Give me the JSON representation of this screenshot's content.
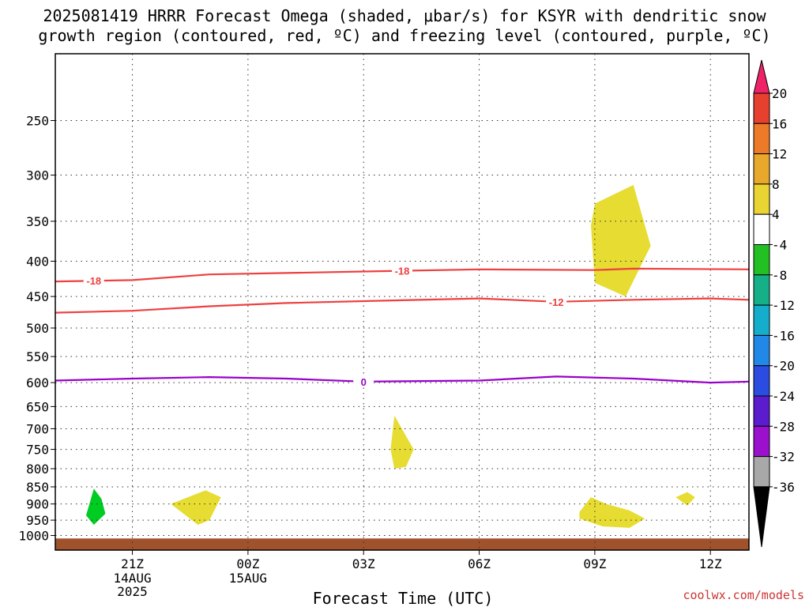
{
  "title_line1": "2025081419 HRRR Forecast Omega (shaded, μbar/s) for KSYR with dendritic snow",
  "title_line2": "growth region (contoured, red, ºC) and freezing level (contoured, purple, ºC)",
  "credit": "coolwx.com/models",
  "chart_data": {
    "type": "time-height cross section",
    "xlabel": "Forecast Time (UTC)",
    "ylabel": "",
    "y_scale": "log pressure (inverted)",
    "ylim_hPa": [
      1050,
      200
    ],
    "xlim_hours_after_19Z": [
      0,
      18
    ],
    "x_ticks": [
      {
        "hour": 2,
        "label": "21Z",
        "sub": [
          "14AUG",
          "2025"
        ]
      },
      {
        "hour": 5,
        "label": "00Z",
        "sub": [
          "15AUG"
        ]
      },
      {
        "hour": 8,
        "label": "03Z",
        "sub": []
      },
      {
        "hour": 11,
        "label": "06Z",
        "sub": []
      },
      {
        "hour": 14,
        "label": "09Z",
        "sub": []
      },
      {
        "hour": 17,
        "label": "12Z",
        "sub": []
      }
    ],
    "y_ticks": [
      250,
      300,
      350,
      400,
      450,
      500,
      550,
      600,
      650,
      700,
      750,
      800,
      850,
      900,
      950,
      1000
    ],
    "grid": true,
    "contours": [
      {
        "label": "-18",
        "color": "#ee4040",
        "type": "dendritic snow growth",
        "points": [
          [
            0,
            428
          ],
          [
            2,
            426
          ],
          [
            4,
            418
          ],
          [
            6,
            416
          ],
          [
            8,
            414
          ],
          [
            11,
            411
          ],
          [
            14,
            412
          ],
          [
            15,
            410
          ],
          [
            18,
            411
          ]
        ],
        "label_at": [
          [
            1,
            428
          ],
          [
            9,
            414
          ]
        ]
      },
      {
        "label": "-12",
        "color": "#ee4040",
        "type": "dendritic snow growth",
        "points": [
          [
            0,
            475
          ],
          [
            2,
            472
          ],
          [
            4,
            465
          ],
          [
            6,
            460
          ],
          [
            8,
            457
          ],
          [
            11,
            453
          ],
          [
            13,
            458
          ],
          [
            15,
            455
          ],
          [
            17,
            453
          ],
          [
            18,
            455
          ]
        ],
        "label_at": [
          [
            13,
            457
          ]
        ]
      },
      {
        "label": "0",
        "color": "#9900cc",
        "type": "freezing level",
        "points": [
          [
            0,
            596
          ],
          [
            2,
            592
          ],
          [
            4,
            589
          ],
          [
            6,
            592
          ],
          [
            8,
            598
          ],
          [
            11,
            596
          ],
          [
            13,
            588
          ],
          [
            15,
            592
          ],
          [
            17,
            600
          ],
          [
            18,
            598
          ]
        ],
        "label_at": [
          [
            8,
            598
          ]
        ]
      }
    ],
    "shaded_regions": [
      {
        "omega_range": [
          4,
          8
        ],
        "color": "#e6dc32",
        "points": [
          [
            14.0,
            330
          ],
          [
            15.0,
            310
          ],
          [
            15.45,
            380
          ],
          [
            14.8,
            450
          ],
          [
            14.0,
            430
          ],
          [
            13.9,
            355
          ]
        ]
      },
      {
        "omega_range": [
          4,
          8
        ],
        "color": "#e6dc32",
        "points": [
          [
            8.8,
            670
          ],
          [
            9.3,
            750
          ],
          [
            9.1,
            795
          ],
          [
            8.8,
            800
          ],
          [
            8.7,
            750
          ]
        ]
      },
      {
        "omega_range": [
          4,
          8
        ],
        "color": "#e6dc32",
        "points": [
          [
            3.0,
            900
          ],
          [
            3.9,
            860
          ],
          [
            4.3,
            880
          ],
          [
            4.0,
            950
          ],
          [
            3.7,
            965
          ]
        ]
      },
      {
        "omega_range": [
          4,
          8
        ],
        "color": "#e6dc32",
        "points": [
          [
            13.6,
            925
          ],
          [
            13.9,
            880
          ],
          [
            14.3,
            900
          ],
          [
            14.9,
            920
          ],
          [
            15.3,
            945
          ],
          [
            14.9,
            975
          ],
          [
            14.2,
            970
          ],
          [
            13.6,
            945
          ]
        ]
      },
      {
        "omega_range": [
          4,
          8
        ],
        "color": "#e6dc32",
        "points": [
          [
            16.1,
            880
          ],
          [
            16.4,
            865
          ],
          [
            16.6,
            880
          ],
          [
            16.4,
            905
          ]
        ]
      },
      {
        "omega_range": [
          -8,
          -4
        ],
        "color": "#00cc22",
        "points": [
          [
            1.0,
            855
          ],
          [
            1.2,
            885
          ],
          [
            1.3,
            930
          ],
          [
            1.0,
            965
          ],
          [
            0.8,
            935
          ]
        ]
      }
    ],
    "surface_color": "#a0522d",
    "surface_top_hPa": 1010,
    "colorbar": {
      "labels": [
        "20",
        "16",
        "12",
        "8",
        "4",
        "-4",
        "-8",
        "-12",
        "-16",
        "-20",
        "-24",
        "-28",
        "-32",
        "-36"
      ],
      "segments": [
        "#ee2266",
        "#e8402e",
        "#ec7a28",
        "#e8a82c",
        "#ead432",
        "#ffffff",
        "#22c022",
        "#16b088",
        "#14aecc",
        "#2288e8",
        "#2a4ce0",
        "#5a1ccc",
        "#9a10cc",
        "#a8a8a8",
        "#000000"
      ]
    }
  }
}
